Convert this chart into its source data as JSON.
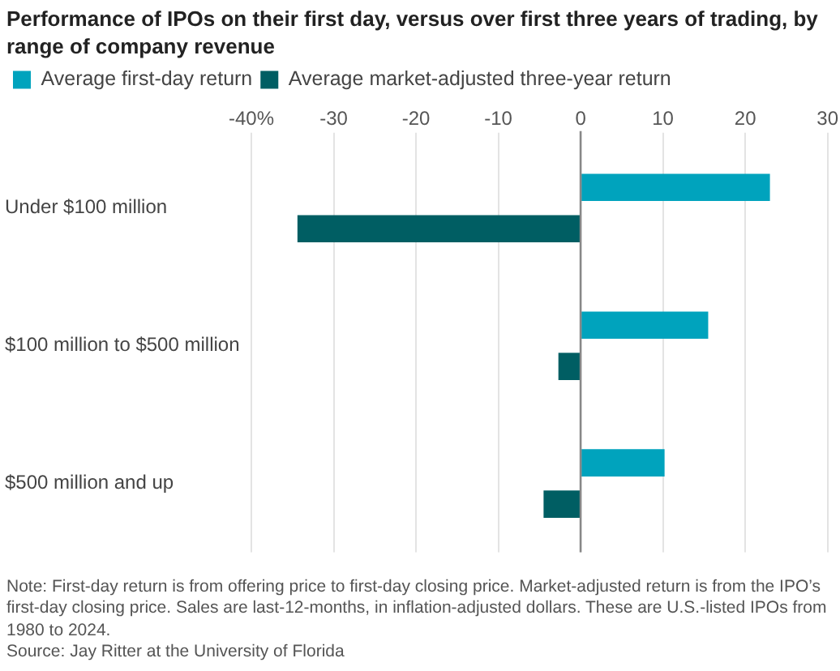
{
  "chart_data": {
    "type": "bar",
    "orientation": "horizontal",
    "title": "Performance of IPOs on their first day, versus over first three years of trading, by range of company revenue",
    "categories": [
      "Under $100 million",
      "$100 million to $500 million",
      "$500 million and up"
    ],
    "series": [
      {
        "name": "Average first-day return",
        "color": "#00a3bd",
        "values": [
          23.0,
          15.5,
          10.2
        ]
      },
      {
        "name": "Average market-adjusted three-year return",
        "color": "#005e63",
        "values": [
          -34.4,
          -2.7,
          -4.5
        ]
      }
    ],
    "xlim": [
      -40,
      30
    ],
    "xticks": [
      {
        "value": -40,
        "label": "-40%"
      },
      -30,
      -20,
      -10,
      0,
      10,
      20,
      30
    ],
    "grid": "x",
    "legend": "top left",
    "ref_lines": [
      {
        "axis": "x",
        "value": 0,
        "color": "#888888"
      }
    ],
    "annotations": [
      "Note: First-day return is from offering price to first-day closing price. Market-adjusted return is from the IPO’s first-day closing price. Sales are last-12-months, in inflation-adjusted dollars. These are U.S.-listed IPOs from 1980 to 2024.",
      "Source: Jay Ritter at the University of Florida"
    ]
  }
}
